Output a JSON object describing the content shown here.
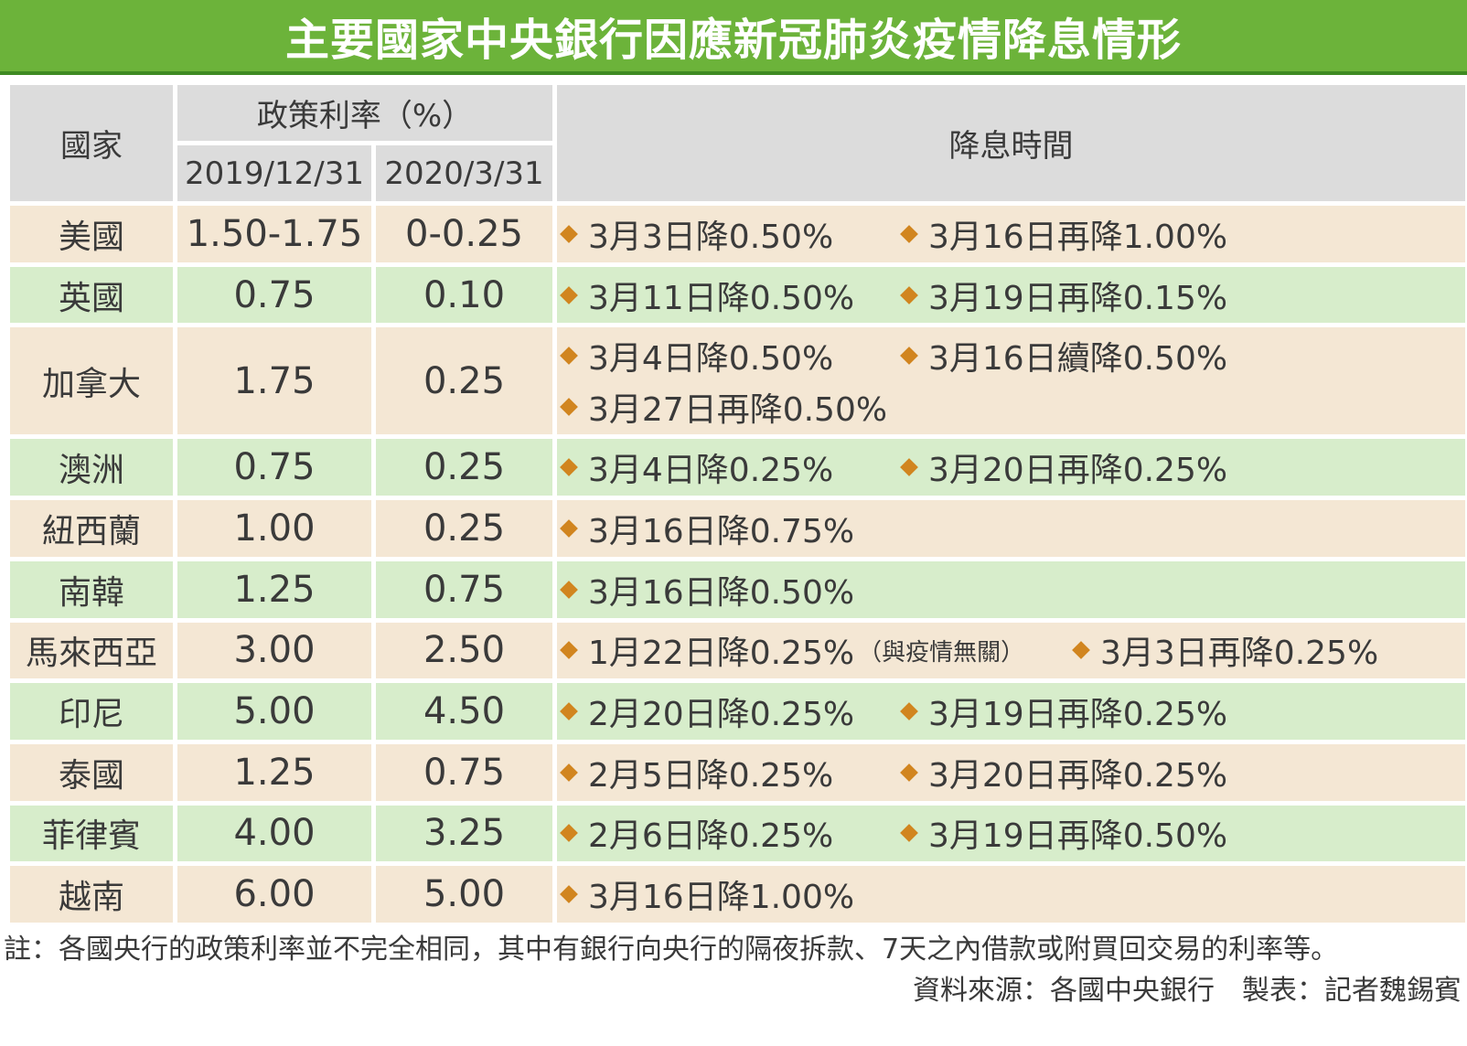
{
  "title": "主要國家中央銀行因應新冠肺炎疫情降息情形",
  "header": {
    "country": "國家",
    "policy_rate": "政策利率（%）",
    "date1": "2019/12/31",
    "date2": "2020/3/31",
    "cut_dates": "降息時間"
  },
  "rows": [
    {
      "country": "美國",
      "rate_2019": "1.50-1.75",
      "rate_2020": "0-0.25",
      "lines": [
        [
          "3月3日降0.50%",
          "3月16日再降1.00%"
        ]
      ]
    },
    {
      "country": "英國",
      "rate_2019": "0.75",
      "rate_2020": "0.10",
      "lines": [
        [
          "3月11日降0.50%",
          "3月19日再降0.15%"
        ]
      ]
    },
    {
      "country": "加拿大",
      "rate_2019": "1.75",
      "rate_2020": "0.25",
      "lines": [
        [
          "3月4日降0.50%",
          "3月16日續降0.50%"
        ],
        [
          "3月27日再降0.50%"
        ]
      ]
    },
    {
      "country": "澳洲",
      "rate_2019": "0.75",
      "rate_2020": "0.25",
      "lines": [
        [
          "3月4日降0.25%",
          "3月20日再降0.25%"
        ]
      ]
    },
    {
      "country": "紐西蘭",
      "rate_2019": "1.00",
      "rate_2020": "0.25",
      "lines": [
        [
          "3月16日降0.75%"
        ]
      ]
    },
    {
      "country": "南韓",
      "rate_2019": "1.25",
      "rate_2020": "0.75",
      "lines": [
        [
          "3月16日降0.50%"
        ]
      ]
    },
    {
      "country": "馬來西亞",
      "rate_2019": "3.00",
      "rate_2020": "2.50",
      "note": "（與疫情無關）",
      "lines": [
        [
          "1月22日降0.25%",
          "3月3日再降0.25%"
        ]
      ]
    },
    {
      "country": "印尼",
      "rate_2019": "5.00",
      "rate_2020": "4.50",
      "lines": [
        [
          "2月20日降0.25%",
          "3月19日再降0.25%"
        ]
      ]
    },
    {
      "country": "泰國",
      "rate_2019": "1.25",
      "rate_2020": "0.75",
      "lines": [
        [
          "2月5日降0.25%",
          "3月20日再降0.25%"
        ]
      ]
    },
    {
      "country": "菲律賓",
      "rate_2019": "4.00",
      "rate_2020": "3.25",
      "lines": [
        [
          "2月6日降0.25%",
          "3月19日再降0.50%"
        ]
      ]
    },
    {
      "country": "越南",
      "rate_2019": "6.00",
      "rate_2020": "5.00",
      "lines": [
        [
          "3月16日降1.00%"
        ]
      ]
    }
  ],
  "footnote": "註：各國央行的政策利率並不完全相同，其中有銀行向央行的隔夜拆款、7天之內借款或附買回交易的利率等。",
  "source": "資料來源：各國中央銀行　製表：記者魏錫賓",
  "colors": {
    "title_bg": "#6cb33a",
    "header_bg": "#dcdcdc",
    "row_beige": "#f4e7d4",
    "row_green": "#d7edcb",
    "bullet": "#d1851f"
  }
}
